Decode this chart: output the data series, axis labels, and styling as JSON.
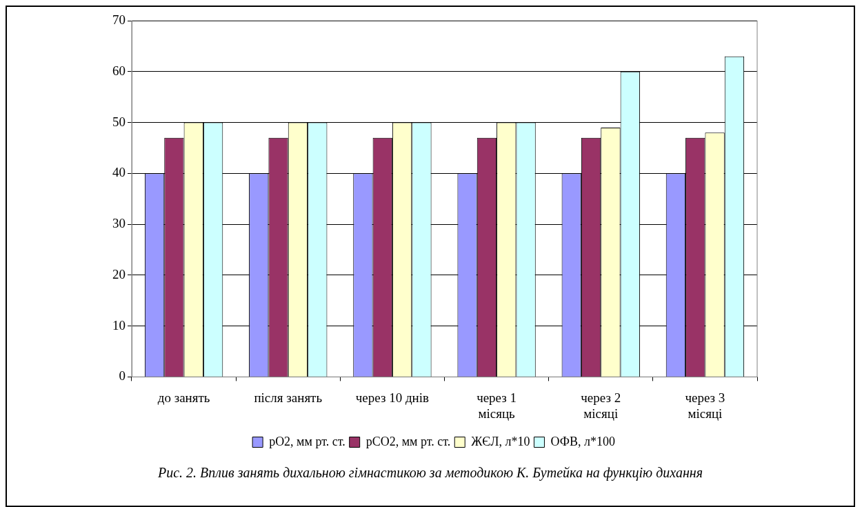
{
  "chart_data": {
    "type": "bar",
    "categories": [
      "до занять",
      "після занять",
      "через 10 днів",
      "через 1 місяць",
      "через 2 місяці",
      "через 3 місяці"
    ],
    "series": [
      {
        "name": "рО2, мм рт. ст.",
        "color": "#9999ff",
        "values": [
          40,
          40,
          40,
          40,
          40,
          40
        ]
      },
      {
        "name": "рСО2, мм рт. ст.",
        "color": "#993366",
        "values": [
          47,
          47,
          47,
          47,
          47,
          47
        ]
      },
      {
        "name": "ЖЄЛ, л*10",
        "color": "#ffffcc",
        "values": [
          50,
          50,
          50,
          50,
          49,
          48
        ]
      },
      {
        "name": "ОФВ, л*100",
        "color": "#ccffff",
        "values": [
          50,
          50,
          50,
          50,
          60,
          63
        ]
      }
    ],
    "ylim": [
      0,
      70
    ],
    "yticks": [
      0,
      10,
      20,
      30,
      40,
      50,
      60,
      70
    ],
    "grid": "y",
    "legend": "bottom",
    "annotations": [
      "Рис. 2. Вплив занять дихальною гімнастикою за методикою К. Бутейка на функцію дихання"
    ]
  }
}
